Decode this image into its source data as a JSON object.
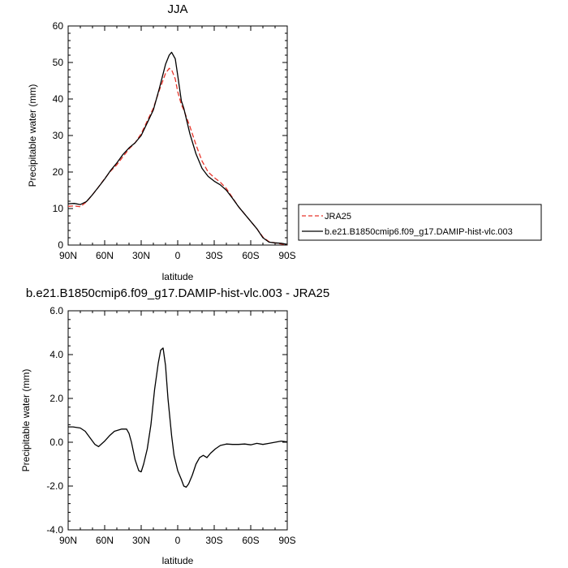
{
  "chart_data": [
    {
      "type": "line",
      "title": "JJA",
      "xlabel": "latitude",
      "ylabel": "Precipitable water (mm)",
      "xlim": [
        90,
        -90
      ],
      "ylim": [
        0,
        60
      ],
      "x_ticks": [
        90,
        60,
        30,
        0,
        -30,
        -60,
        -90
      ],
      "x_tick_labels": [
        "90N",
        "60N",
        "30N",
        "0",
        "30S",
        "60S",
        "90S"
      ],
      "y_ticks": [
        0,
        10,
        20,
        30,
        40,
        50,
        60
      ],
      "y_tick_labels": [
        "0",
        "10",
        "20",
        "30",
        "40",
        "50",
        "60"
      ],
      "grid": false,
      "legend_position": "right-outside",
      "series": [
        {
          "name": "JRA25",
          "color": "#e8352b",
          "style": "dashed",
          "points": [
            [
              90,
              10.6
            ],
            [
              85,
              10.7
            ],
            [
              80,
              10.5
            ],
            [
              75,
              11.8
            ],
            [
              70,
              13.8
            ],
            [
              65,
              15.9
            ],
            [
              60,
              18.2
            ],
            [
              55,
              20.3
            ],
            [
              50,
              22.0
            ],
            [
              45,
              24.2
            ],
            [
              40,
              26.3
            ],
            [
              35,
              28.0
            ],
            [
              30,
              30.5
            ],
            [
              25,
              34.0
            ],
            [
              20,
              37.5
            ],
            [
              15,
              42.5
            ],
            [
              10,
              47.0
            ],
            [
              7,
              48.4
            ],
            [
              5,
              48.0
            ],
            [
              2,
              45.5
            ],
            [
              0,
              42.0
            ],
            [
              -3,
              38.5
            ],
            [
              -5,
              37.0
            ],
            [
              -10,
              32.5
            ],
            [
              -15,
              27.5
            ],
            [
              -20,
              23.0
            ],
            [
              -25,
              20.0
            ],
            [
              -30,
              18.5
            ],
            [
              -35,
              17.2
            ],
            [
              -40,
              15.5
            ],
            [
              -45,
              13.0
            ],
            [
              -50,
              10.5
            ],
            [
              -55,
              8.5
            ],
            [
              -60,
              6.5
            ],
            [
              -65,
              4.5
            ],
            [
              -70,
              2.2
            ],
            [
              -75,
              0.9
            ],
            [
              -80,
              0.6
            ],
            [
              -85,
              0.3
            ],
            [
              -90,
              0.1
            ]
          ]
        },
        {
          "name": "b.e21.B1850cmip6.f09_g17.DAMIP-hist-vlc.003",
          "color": "#000000",
          "style": "solid",
          "points": [
            [
              90,
              11.3
            ],
            [
              85,
              11.4
            ],
            [
              80,
              11.1
            ],
            [
              75,
              11.9
            ],
            [
              70,
              13.8
            ],
            [
              65,
              15.9
            ],
            [
              60,
              18.1
            ],
            [
              55,
              20.5
            ],
            [
              50,
              22.5
            ],
            [
              45,
              24.8
            ],
            [
              40,
              26.6
            ],
            [
              35,
              28.0
            ],
            [
              30,
              30.0
            ],
            [
              25,
              33.5
            ],
            [
              20,
              37.0
            ],
            [
              15,
              43.0
            ],
            [
              10,
              49.5
            ],
            [
              7,
              52.0
            ],
            [
              5,
              52.8
            ],
            [
              2,
              51.0
            ],
            [
              0,
              46.5
            ],
            [
              -3,
              39.5
            ],
            [
              -5,
              37.5
            ],
            [
              -10,
              30.5
            ],
            [
              -15,
              25.0
            ],
            [
              -20,
              21.0
            ],
            [
              -25,
              18.8
            ],
            [
              -30,
              17.5
            ],
            [
              -35,
              16.5
            ],
            [
              -40,
              15.0
            ],
            [
              -45,
              12.8
            ],
            [
              -50,
              10.5
            ],
            [
              -55,
              8.5
            ],
            [
              -60,
              6.5
            ],
            [
              -65,
              4.5
            ],
            [
              -70,
              2.0
            ],
            [
              -75,
              0.8
            ],
            [
              -80,
              0.6
            ],
            [
              -85,
              0.5
            ],
            [
              -90,
              0.2
            ]
          ]
        }
      ]
    },
    {
      "type": "line",
      "title": "b.e21.B1850cmip6.f09_g17.DAMIP-hist-vlc.003 - JRA25",
      "xlabel": "latitude",
      "ylabel": "Precipitable water (mm)",
      "xlim": [
        90,
        -90
      ],
      "ylim": [
        -4,
        6
      ],
      "x_ticks": [
        90,
        60,
        30,
        0,
        -30,
        -60,
        -90
      ],
      "x_tick_labels": [
        "90N",
        "60N",
        "30N",
        "0",
        "30S",
        "60S",
        "90S"
      ],
      "y_ticks": [
        -4,
        -2,
        0,
        2,
        4,
        6
      ],
      "y_tick_labels": [
        "-4.0",
        "-2.0",
        "0.0",
        "2.0",
        "4.0",
        "6.0"
      ],
      "grid": false,
      "series": [
        {
          "color": "#000000",
          "style": "solid",
          "points": [
            [
              90,
              0.7
            ],
            [
              86,
              0.7
            ],
            [
              80,
              0.65
            ],
            [
              76,
              0.5
            ],
            [
              72,
              0.2
            ],
            [
              68,
              -0.1
            ],
            [
              65,
              -0.2
            ],
            [
              60,
              0.05
            ],
            [
              56,
              0.3
            ],
            [
              52,
              0.5
            ],
            [
              46,
              0.6
            ],
            [
              42,
              0.6
            ],
            [
              40,
              0.4
            ],
            [
              38,
              0.0
            ],
            [
              35,
              -0.8
            ],
            [
              32,
              -1.3
            ],
            [
              30,
              -1.35
            ],
            [
              28,
              -1.0
            ],
            [
              25,
              -0.3
            ],
            [
              22,
              0.8
            ],
            [
              19,
              2.4
            ],
            [
              16,
              3.6
            ],
            [
              14,
              4.2
            ],
            [
              12,
              4.3
            ],
            [
              10,
              3.5
            ],
            [
              8,
              2.0
            ],
            [
              5,
              0.3
            ],
            [
              3,
              -0.6
            ],
            [
              0,
              -1.3
            ],
            [
              -3,
              -1.7
            ],
            [
              -5,
              -2.0
            ],
            [
              -7,
              -2.05
            ],
            [
              -9,
              -1.9
            ],
            [
              -12,
              -1.5
            ],
            [
              -15,
              -1.0
            ],
            [
              -18,
              -0.7
            ],
            [
              -21,
              -0.6
            ],
            [
              -24,
              -0.7
            ],
            [
              -27,
              -0.5
            ],
            [
              -31,
              -0.3
            ],
            [
              -35,
              -0.15
            ],
            [
              -40,
              -0.08
            ],
            [
              -45,
              -0.1
            ],
            [
              -50,
              -0.1
            ],
            [
              -55,
              -0.08
            ],
            [
              -60,
              -0.12
            ],
            [
              -65,
              -0.05
            ],
            [
              -70,
              -0.1
            ],
            [
              -75,
              -0.05
            ],
            [
              -80,
              0.0
            ],
            [
              -85,
              0.05
            ],
            [
              -90,
              0.02
            ]
          ]
        }
      ]
    }
  ]
}
